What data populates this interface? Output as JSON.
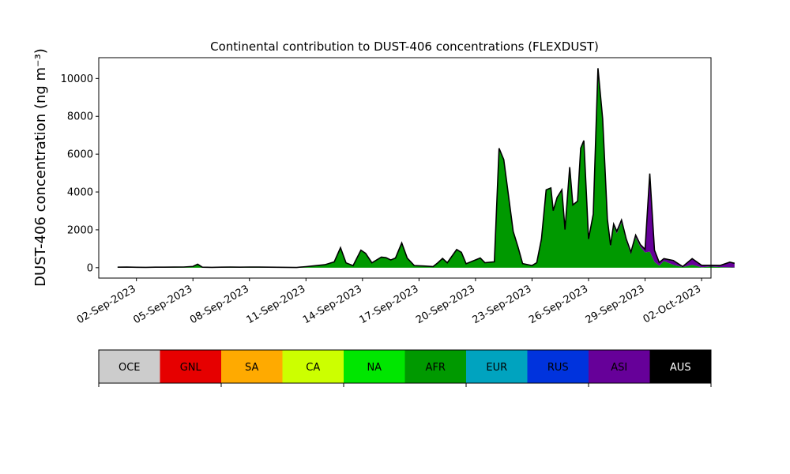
{
  "chart_data": {
    "type": "area",
    "title": "Continental contribution to DUST-406 concentrations (FLEXDUST)",
    "ylabel": "DUST-406 concentration (ng m⁻³)",
    "xlabel": "",
    "xlim": [
      "2023-08-31T00:00",
      "2023-10-02T12:00"
    ],
    "ylim": [
      -550,
      11100
    ],
    "yticks": [
      0,
      2000,
      4000,
      6000,
      8000,
      10000
    ],
    "xticks": [
      {
        "date": "2023-09-02",
        "label": "02-Sep-2023"
      },
      {
        "date": "2023-09-05",
        "label": "05-Sep-2023"
      },
      {
        "date": "2023-09-08",
        "label": "08-Sep-2023"
      },
      {
        "date": "2023-09-11",
        "label": "11-Sep-2023"
      },
      {
        "date": "2023-09-14",
        "label": "14-Sep-2023"
      },
      {
        "date": "2023-09-17",
        "label": "17-Sep-2023"
      },
      {
        "date": "2023-09-20",
        "label": "20-Sep-2023"
      },
      {
        "date": "2023-09-23",
        "label": "23-Sep-2023"
      },
      {
        "date": "2023-09-26",
        "label": "26-Sep-2023"
      },
      {
        "date": "2023-09-29",
        "label": "29-Sep-2023"
      },
      {
        "date": "2023-10-02",
        "label": "02-Oct-2023"
      }
    ],
    "legend": {
      "placement": "below",
      "entries": [
        {
          "name": "OCE",
          "color": "#cccccc",
          "text_color": "#000000"
        },
        {
          "name": "GNL",
          "color": "#e60000",
          "text_color": "#000000"
        },
        {
          "name": "SA",
          "color": "#ffaa00",
          "text_color": "#000000"
        },
        {
          "name": "CA",
          "color": "#ccff00",
          "text_color": "#000000"
        },
        {
          "name": "NA",
          "color": "#00e600",
          "text_color": "#000000"
        },
        {
          "name": "AFR",
          "color": "#009900",
          "text_color": "#000000"
        },
        {
          "name": "EUR",
          "color": "#00a3bf",
          "text_color": "#000000"
        },
        {
          "name": "RUS",
          "color": "#0033dd",
          "text_color": "#000000"
        },
        {
          "name": "ASI",
          "color": "#660099",
          "text_color": "#000000"
        },
        {
          "name": "AUS",
          "color": "#000000",
          "text_color": "#ffffff"
        }
      ]
    },
    "series": [
      {
        "name": "AFR",
        "color": "#009900",
        "points": [
          [
            "2023-09-01T00:00",
            20
          ],
          [
            "2023-09-01T12:00",
            25
          ],
          [
            "2023-09-02T00:00",
            15
          ],
          [
            "2023-09-02T12:00",
            10
          ],
          [
            "2023-09-03T00:00",
            20
          ],
          [
            "2023-09-03T12:00",
            20
          ],
          [
            "2023-09-04T00:00",
            25
          ],
          [
            "2023-09-04T12:00",
            30
          ],
          [
            "2023-09-05T00:00",
            60
          ],
          [
            "2023-09-05T06:00",
            180
          ],
          [
            "2023-09-05T12:00",
            20
          ],
          [
            "2023-09-06T00:00",
            10
          ],
          [
            "2023-09-06T12:00",
            20
          ],
          [
            "2023-09-07T00:00",
            25
          ],
          [
            "2023-09-07T12:00",
            20
          ],
          [
            "2023-09-08T00:00",
            30
          ],
          [
            "2023-09-08T12:00",
            25
          ],
          [
            "2023-09-09T00:00",
            20
          ],
          [
            "2023-09-09T12:00",
            15
          ],
          [
            "2023-09-10T00:00",
            10
          ],
          [
            "2023-09-10T12:00",
            5
          ],
          [
            "2023-09-11T00:00",
            50
          ],
          [
            "2023-09-11T12:00",
            100
          ],
          [
            "2023-09-12T00:00",
            150
          ],
          [
            "2023-09-12T12:00",
            300
          ],
          [
            "2023-09-12T20:00",
            1050
          ],
          [
            "2023-09-13T03:00",
            250
          ],
          [
            "2023-09-13T12:00",
            100
          ],
          [
            "2023-09-13T22:00",
            920
          ],
          [
            "2023-09-14T04:00",
            750
          ],
          [
            "2023-09-14T12:00",
            250
          ],
          [
            "2023-09-15T00:00",
            550
          ],
          [
            "2023-09-15T06:00",
            520
          ],
          [
            "2023-09-15T12:00",
            400
          ],
          [
            "2023-09-15T18:00",
            500
          ],
          [
            "2023-09-16T02:00",
            1300
          ],
          [
            "2023-09-16T09:00",
            500
          ],
          [
            "2023-09-16T18:00",
            100
          ],
          [
            "2023-09-17T06:00",
            80
          ],
          [
            "2023-09-17T18:00",
            50
          ],
          [
            "2023-09-18T00:00",
            250
          ],
          [
            "2023-09-18T06:00",
            480
          ],
          [
            "2023-09-18T12:00",
            250
          ],
          [
            "2023-09-19T00:00",
            950
          ],
          [
            "2023-09-19T06:00",
            800
          ],
          [
            "2023-09-19T12:00",
            200
          ],
          [
            "2023-09-20T00:00",
            400
          ],
          [
            "2023-09-20T06:00",
            500
          ],
          [
            "2023-09-20T12:00",
            250
          ],
          [
            "2023-09-21T00:00",
            300
          ],
          [
            "2023-09-21T06:00",
            6300
          ],
          [
            "2023-09-21T12:00",
            5700
          ],
          [
            "2023-09-22T00:00",
            1900
          ],
          [
            "2023-09-22T06:00",
            1100
          ],
          [
            "2023-09-22T12:00",
            200
          ],
          [
            "2023-09-23T00:00",
            100
          ],
          [
            "2023-09-23T06:00",
            250
          ],
          [
            "2023-09-23T12:00",
            1500
          ],
          [
            "2023-09-23T18:00",
            4100
          ],
          [
            "2023-09-24T00:00",
            4200
          ],
          [
            "2023-09-24T03:00",
            3000
          ],
          [
            "2023-09-24T08:00",
            3700
          ],
          [
            "2023-09-24T14:00",
            4100
          ],
          [
            "2023-09-24T18:00",
            2000
          ],
          [
            "2023-09-25T00:00",
            5300
          ],
          [
            "2023-09-25T04:00",
            3300
          ],
          [
            "2023-09-25T10:00",
            3500
          ],
          [
            "2023-09-25T14:00",
            6300
          ],
          [
            "2023-09-25T18:00",
            6700
          ],
          [
            "2023-09-26T00:00",
            1500
          ],
          [
            "2023-09-26T06:00",
            2800
          ],
          [
            "2023-09-26T12:00",
            10500
          ],
          [
            "2023-09-26T18:00",
            7800
          ],
          [
            "2023-09-27T00:00",
            2500
          ],
          [
            "2023-09-27T04:00",
            1100
          ],
          [
            "2023-09-27T08:00",
            2200
          ],
          [
            "2023-09-27T12:00",
            1800
          ],
          [
            "2023-09-27T18:00",
            2400
          ],
          [
            "2023-09-28T00:00",
            1400
          ],
          [
            "2023-09-28T06:00",
            700
          ],
          [
            "2023-09-28T12:00",
            1600
          ],
          [
            "2023-09-28T18:00",
            1100
          ],
          [
            "2023-09-29T00:00",
            800
          ],
          [
            "2023-09-29T06:00",
            850
          ],
          [
            "2023-09-29T12:00",
            300
          ],
          [
            "2023-09-29T18:00",
            100
          ],
          [
            "2023-09-30T00:00",
            350
          ],
          [
            "2023-09-30T12:00",
            150
          ],
          [
            "2023-10-01T00:00",
            30
          ],
          [
            "2023-10-01T12:00",
            150
          ],
          [
            "2023-10-02T00:00",
            20
          ],
          [
            "2023-10-02T12:00",
            60
          ],
          [
            "2023-10-03T00:00",
            30
          ],
          [
            "2023-10-03T12:00",
            20
          ],
          [
            "2023-10-03T18:00",
            10
          ]
        ]
      },
      {
        "name": "ASI",
        "color": "#660099",
        "points": [
          [
            "2023-09-01T00:00",
            0
          ],
          [
            "2023-09-26T00:00",
            0
          ],
          [
            "2023-09-27T00:00",
            50
          ],
          [
            "2023-09-27T12:00",
            100
          ],
          [
            "2023-09-28T00:00",
            100
          ],
          [
            "2023-09-28T12:00",
            100
          ],
          [
            "2023-09-28T18:00",
            100
          ],
          [
            "2023-09-29T00:00",
            150
          ],
          [
            "2023-09-29T06:00",
            4100
          ],
          [
            "2023-09-29T12:00",
            600
          ],
          [
            "2023-09-29T18:00",
            150
          ],
          [
            "2023-09-30T00:00",
            100
          ],
          [
            "2023-09-30T12:00",
            200
          ],
          [
            "2023-10-01T00:00",
            0
          ],
          [
            "2023-10-01T12:00",
            300
          ],
          [
            "2023-10-02T00:00",
            80
          ],
          [
            "2023-10-02T12:00",
            40
          ],
          [
            "2023-10-03T00:00",
            70
          ],
          [
            "2023-10-03T12:00",
            250
          ],
          [
            "2023-10-03T18:00",
            200
          ]
        ]
      },
      {
        "name": "RUS",
        "color": "#0033dd",
        "points": [
          [
            "2023-09-01T00:00",
            5
          ],
          [
            "2023-09-10T00:00",
            5
          ],
          [
            "2023-09-20T00:00",
            10
          ],
          [
            "2023-09-28T00:00",
            20
          ],
          [
            "2023-10-01T00:00",
            30
          ],
          [
            "2023-10-03T18:00",
            20
          ]
        ]
      }
    ]
  }
}
